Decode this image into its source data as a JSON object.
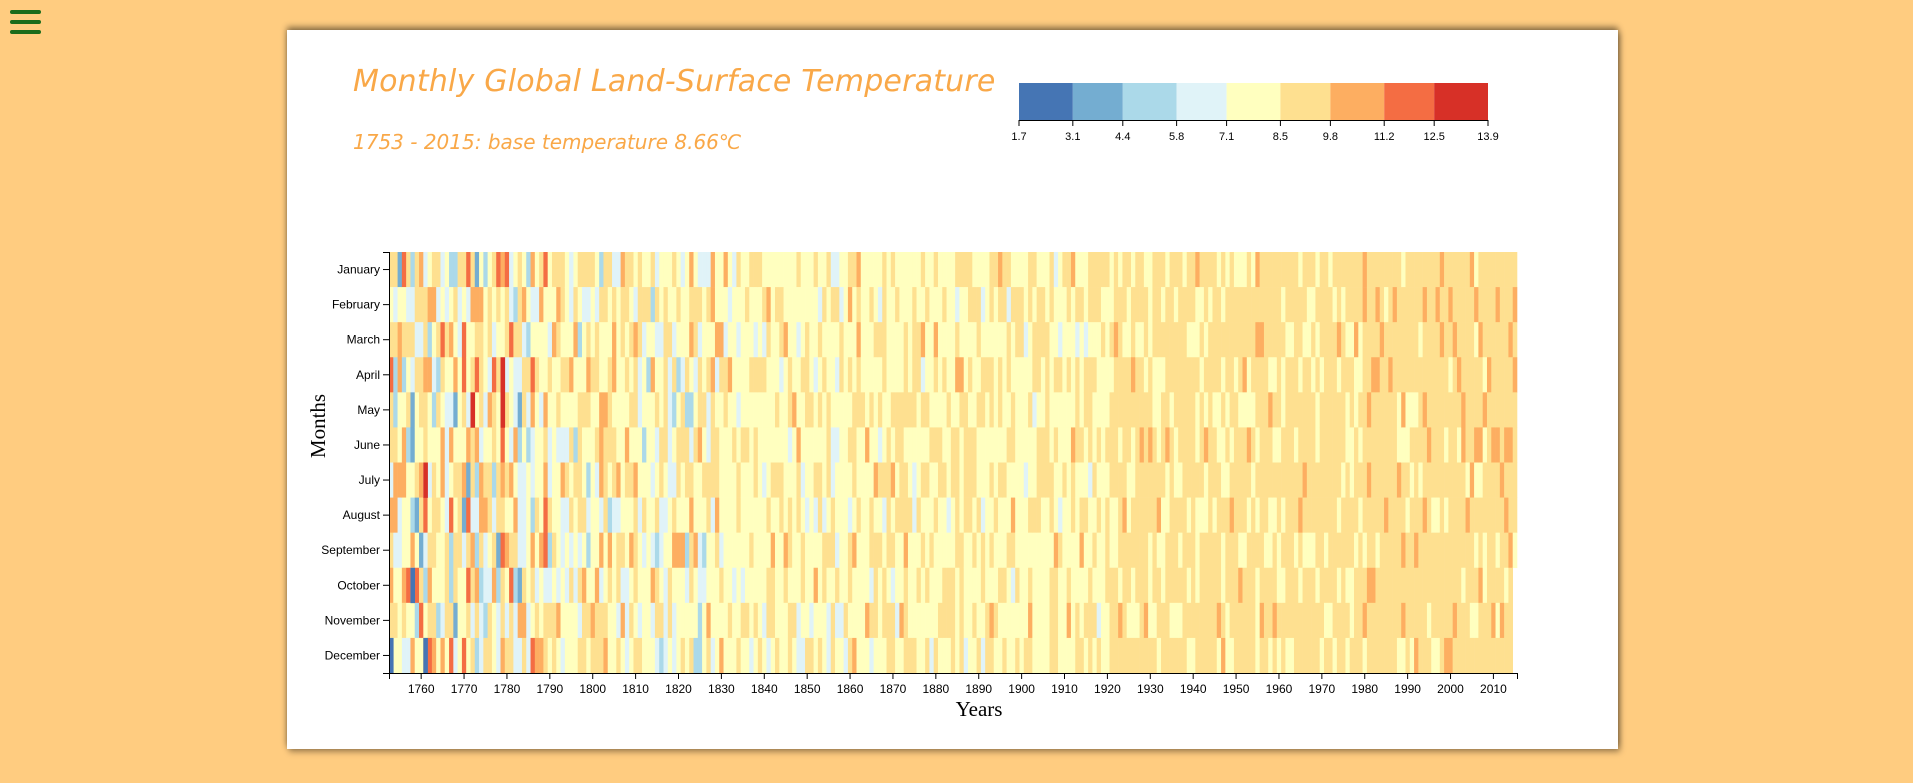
{
  "menu": {
    "icon": "hamburger-menu-icon",
    "color": "#1b6b1b"
  },
  "chart_data": {
    "type": "heatmap",
    "title": "Monthly Global Land-Surface Temperature",
    "subtitle": "1753 - 2015: base temperature 8.66℃",
    "xlabel": "Years",
    "ylabel": "Months",
    "x_range": [
      1753,
      2015
    ],
    "x_ticks": [
      1760,
      1770,
      1780,
      1790,
      1800,
      1810,
      1820,
      1830,
      1840,
      1850,
      1860,
      1870,
      1880,
      1890,
      1900,
      1910,
      1920,
      1930,
      1940,
      1950,
      1960,
      1970,
      1980,
      1990,
      2000,
      2010
    ],
    "months": [
      "January",
      "February",
      "March",
      "April",
      "May",
      "June",
      "July",
      "August",
      "September",
      "October",
      "November",
      "December"
    ],
    "legend": {
      "thresholds": [
        "1.7",
        "3.1",
        "4.4",
        "5.8",
        "7.1",
        "8.5",
        "9.8",
        "11.2",
        "12.5",
        "13.9"
      ],
      "colors": [
        "#4575b4",
        "#74add1",
        "#abd9e9",
        "#e0f3f8",
        "#ffffbf",
        "#fee090",
        "#fdae61",
        "#f46d43",
        "#d73027"
      ]
    },
    "visible_outliers": [
      {
        "year": 1772,
        "month": "May",
        "color": "#d73027"
      },
      {
        "year": 1779,
        "month": "May",
        "color": "#d73027"
      },
      {
        "year": 1779,
        "month": "April",
        "color": "#d73027"
      },
      {
        "year": 1761,
        "month": "July",
        "color": "#d73027"
      },
      {
        "year": 1758,
        "month": "October",
        "color": "#4575b4"
      },
      {
        "year": 1761,
        "month": "December",
        "color": "#4575b4"
      },
      {
        "year": 1753,
        "month": "December",
        "color": "#4575b4"
      }
    ]
  }
}
